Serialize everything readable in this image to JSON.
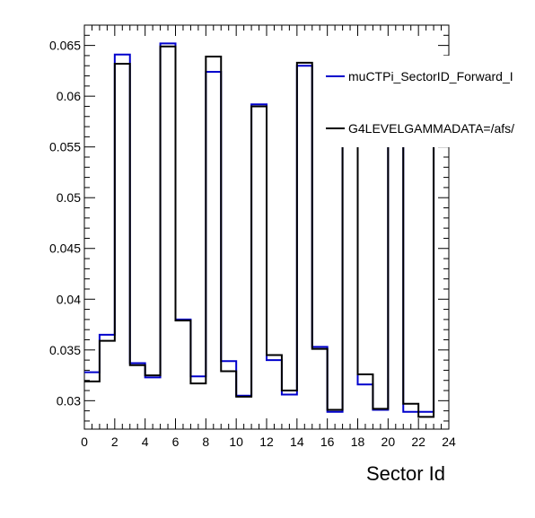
{
  "chart_data": {
    "type": "step-histogram",
    "xlabel": "Sector Id",
    "ylabel": "",
    "xlim": [
      0,
      24
    ],
    "ylim": [
      0.0272,
      0.067
    ],
    "x_ticks": [
      0,
      2,
      4,
      6,
      8,
      10,
      12,
      14,
      16,
      18,
      20,
      22,
      24
    ],
    "y_ticks": [
      0.03,
      0.035,
      0.04,
      0.045,
      0.05,
      0.055,
      0.06,
      0.065
    ],
    "y_tick_labels": [
      "0.03",
      "0.035",
      "0.04",
      "0.045",
      "0.05",
      "0.055",
      "0.06",
      "0.065"
    ],
    "grid": false,
    "legend_position": "top-right",
    "bin_edges": [
      0,
      1,
      2,
      3,
      4,
      5,
      6,
      7,
      8,
      9,
      10,
      11,
      12,
      13,
      14,
      15,
      16,
      17,
      18,
      19,
      20,
      21,
      22,
      23,
      24
    ],
    "series": [
      {
        "name": "muCTPi_SectorID_Forward_I",
        "color": "#0000cc",
        "values": [
          0.0328,
          0.0365,
          0.0641,
          0.0337,
          0.0323,
          0.0652,
          0.038,
          0.0324,
          0.0624,
          0.0339,
          0.0305,
          0.0592,
          0.034,
          0.0306,
          0.063,
          0.0353,
          0.0289,
          0.0575,
          0.0316,
          0.0291,
          0.0571,
          0.0289,
          0.0289,
          0.0572
        ]
      },
      {
        "name": "G4LEVELGAMMADATA=/afs/",
        "color": "#000000",
        "values": [
          0.0319,
          0.0359,
          0.0632,
          0.0335,
          0.0325,
          0.0649,
          0.0379,
          0.0317,
          0.0639,
          0.0329,
          0.0304,
          0.059,
          0.0345,
          0.031,
          0.0633,
          0.0351,
          0.0291,
          0.0573,
          0.0326,
          0.0292,
          0.0569,
          0.0297,
          0.0284,
          0.0569
        ]
      }
    ]
  }
}
